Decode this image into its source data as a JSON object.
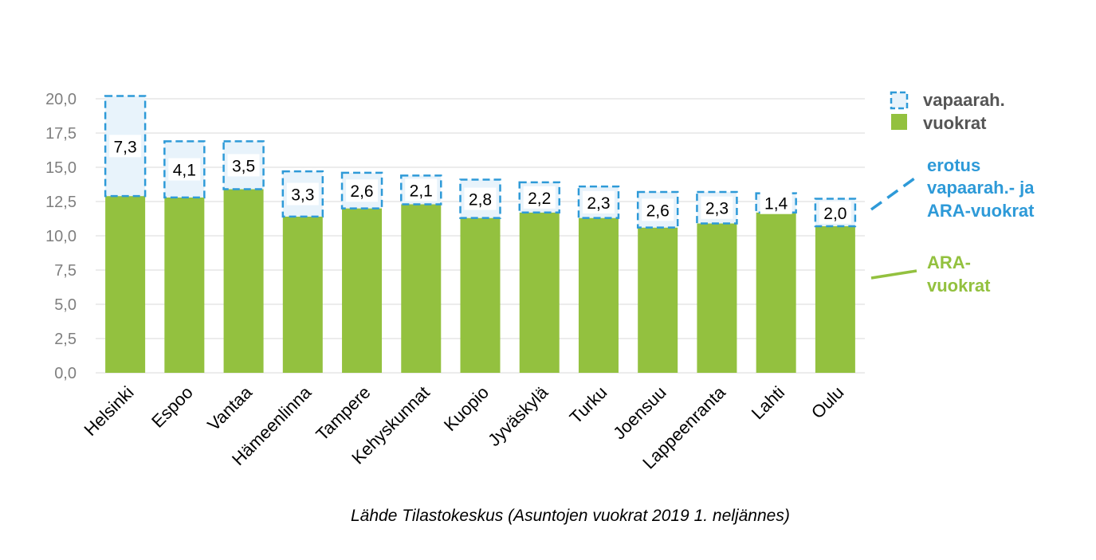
{
  "chart_data": {
    "type": "bar",
    "stacked": true,
    "categories": [
      "Helsinki",
      "Espoo",
      "Vantaa",
      "Hämeenlinna",
      "Tampere",
      "Kehyskunnat",
      "Kuopio",
      "Jyväskylä",
      "Turku",
      "Joensuu",
      "Lappeenranta",
      "Lahti",
      "Oulu"
    ],
    "series": [
      {
        "name": "vuokrat",
        "values": [
          12.9,
          12.8,
          13.4,
          11.4,
          12.0,
          12.3,
          11.3,
          11.7,
          11.3,
          10.6,
          10.9,
          11.7,
          10.7
        ],
        "color": "#93c13f"
      },
      {
        "name": "vapaarah.",
        "values": [
          7.3,
          4.1,
          3.5,
          3.3,
          2.6,
          2.1,
          2.8,
          2.2,
          2.3,
          2.6,
          2.3,
          1.4,
          2.0
        ],
        "value_labels": [
          "7,3",
          "4,1",
          "3,5",
          "3,3",
          "2,6",
          "2,1",
          "2,8",
          "2,2",
          "2,3",
          "2,6",
          "2,3",
          "1,4",
          "2,0"
        ],
        "color": "#2e9ad8",
        "fill": "#e8f3fb",
        "style": "dashed-outline"
      }
    ],
    "ylim": [
      0,
      20
    ],
    "yticks": [
      "0,0",
      "2,5",
      "5,0",
      "7,5",
      "10,0",
      "12,5",
      "15,0",
      "17,5",
      "20,0"
    ],
    "grid": true,
    "legend_position": "top-right",
    "annotations": [
      {
        "id": "erotus",
        "lines": [
          "erotus",
          "vapaarah.- ja",
          "ARA-vuokrat"
        ],
        "color": "#2e9ad8",
        "connector": "dashed"
      },
      {
        "id": "ara",
        "lines": [
          "ARA-",
          "vuokrat"
        ],
        "color": "#93c13f",
        "connector": "solid"
      }
    ]
  },
  "source": "Lähde Tilastokeskus (Asuntojen vuokrat 2019 1. neljännes)"
}
